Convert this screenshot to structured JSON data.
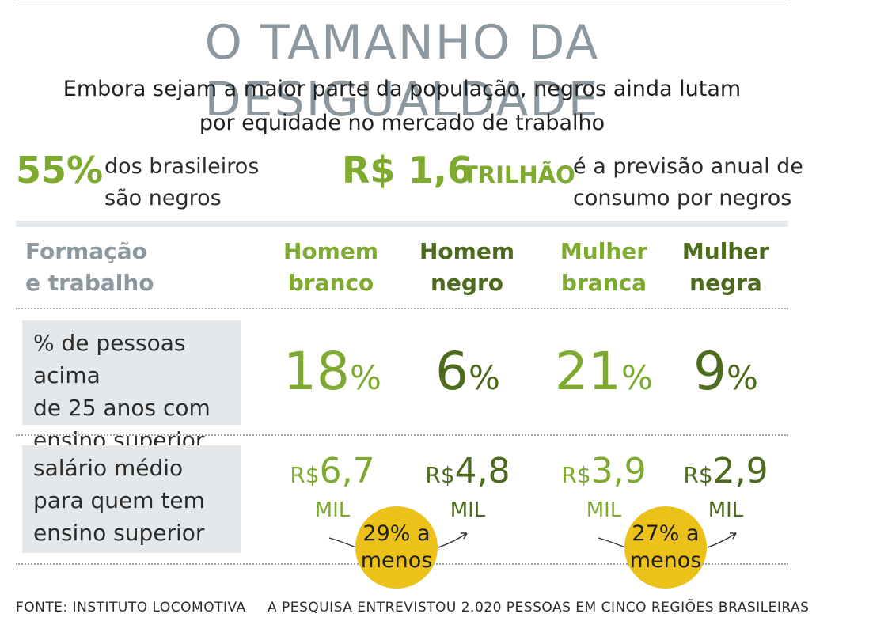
{
  "title": "O TAMANHO DA DESIGUALDADE",
  "subtitle": {
    "line1": "Embora sejam a maior parte da população, negros ainda lutam",
    "line2": "por equidade no mercado de trabalho"
  },
  "stats": [
    {
      "value": "55%",
      "text_line1": "dos brasileiros",
      "text_line2": "são negros"
    },
    {
      "value": "R$ 1,6",
      "unit": "TRILHÃO",
      "text_line1": "é a previsão anual de",
      "text_line2": "consumo por negros"
    }
  ],
  "colors": {
    "title_gray": "#8b98a0",
    "light_green": "#7eab2f",
    "dark_green": "#4c6b1c",
    "badge_yellow": "#ecc21a",
    "label_bg": "#e4e8eb"
  },
  "table": {
    "header": {
      "line1": "Formação",
      "line2": "e trabalho"
    },
    "columns": [
      {
        "line1": "Homem",
        "line2": "branco"
      },
      {
        "line1": "Homem",
        "line2": "negro"
      },
      {
        "line1": "Mulher",
        "line2": "branca"
      },
      {
        "line1": "Mulher",
        "line2": "negra"
      }
    ],
    "rows": [
      {
        "label_lines": [
          "% de pessoas acima",
          "de 25 anos com",
          "ensino superior"
        ]
      },
      {
        "label_lines": [
          "salário médio",
          "para quem tem",
          "ensino superior"
        ]
      }
    ]
  },
  "chart_data": {
    "type": "table",
    "title": "O TAMANHO DA DESIGUALDADE",
    "categories": [
      "Homem branco",
      "Homem negro",
      "Mulher branca",
      "Mulher negra"
    ],
    "series": [
      {
        "name": "% de pessoas acima de 25 anos com ensino superior",
        "values": [
          18,
          6,
          21,
          9
        ],
        "unit_symbol": "%"
      },
      {
        "name": "salário médio para quem tem ensino superior",
        "values": [
          6.7,
          4.8,
          3.9,
          2.9
        ],
        "prefix": "R$",
        "unit": "MIL"
      }
    ],
    "value_labels": {
      "pct": [
        "18",
        "6",
        "21",
        "9"
      ],
      "salary": [
        "6,7",
        "4,8",
        "3,9",
        "2,9"
      ]
    },
    "annotations": [
      {
        "line1": "29% a",
        "line2": "menos",
        "between": [
          "Homem branco",
          "Homem negro"
        ]
      },
      {
        "line1": "27% a",
        "line2": "menos",
        "between": [
          "Mulher branca",
          "Mulher negra"
        ]
      }
    ]
  },
  "footer": {
    "source": "FONTE: INSTITUTO LOCOMOTIVA",
    "note": "A PESQUISA ENTREVISTOU 2.020 PESSOAS EM CINCO REGIÕES BRASILEIRAS"
  }
}
